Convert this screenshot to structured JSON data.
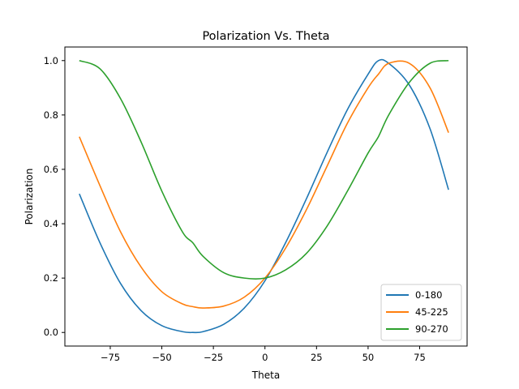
{
  "chart_data": {
    "type": "line",
    "title": "Polarization Vs. Theta",
    "xlabel": "Theta",
    "ylabel": "Polarization",
    "xlim": [
      -97,
      98
    ],
    "ylim": [
      -0.05,
      1.05
    ],
    "xticks": [
      -75,
      -50,
      -25,
      0,
      25,
      50,
      75
    ],
    "xtick_labels": [
      "−75",
      "−50",
      "−25",
      "0",
      "25",
      "50",
      "75"
    ],
    "yticks": [
      0.0,
      0.2,
      0.4,
      0.6,
      0.8,
      1.0
    ],
    "ytick_labels": [
      "0.0",
      "0.2",
      "0.4",
      "0.6",
      "0.8",
      "1.0"
    ],
    "grid": false,
    "legend_position": "lower-right",
    "x": [
      -90,
      -80,
      -70,
      -60,
      -50,
      -40,
      -35,
      -30,
      -20,
      -10,
      0,
      10,
      20,
      30,
      40,
      50,
      55,
      60,
      70,
      80,
      89
    ],
    "series": [
      {
        "name": "0-180",
        "color": "#1f77b4",
        "values": [
          0.51,
          0.33,
          0.18,
          0.08,
          0.025,
          0.003,
          0.0,
          0.003,
          0.03,
          0.09,
          0.19,
          0.33,
          0.49,
          0.66,
          0.82,
          0.95,
          1.0,
          0.99,
          0.91,
          0.75,
          0.525
        ]
      },
      {
        "name": "45-225",
        "color": "#ff7f0e",
        "values": [
          0.72,
          0.54,
          0.37,
          0.24,
          0.15,
          0.105,
          0.095,
          0.09,
          0.097,
          0.13,
          0.2,
          0.31,
          0.45,
          0.61,
          0.77,
          0.9,
          0.95,
          0.99,
          0.99,
          0.9,
          0.735
        ]
      },
      {
        "name": "90-270",
        "color": "#2ca02c",
        "values": [
          1.0,
          0.97,
          0.86,
          0.7,
          0.52,
          0.37,
          0.33,
          0.28,
          0.22,
          0.2,
          0.2,
          0.23,
          0.29,
          0.39,
          0.52,
          0.66,
          0.72,
          0.8,
          0.92,
          0.99,
          1.0
        ]
      }
    ]
  }
}
